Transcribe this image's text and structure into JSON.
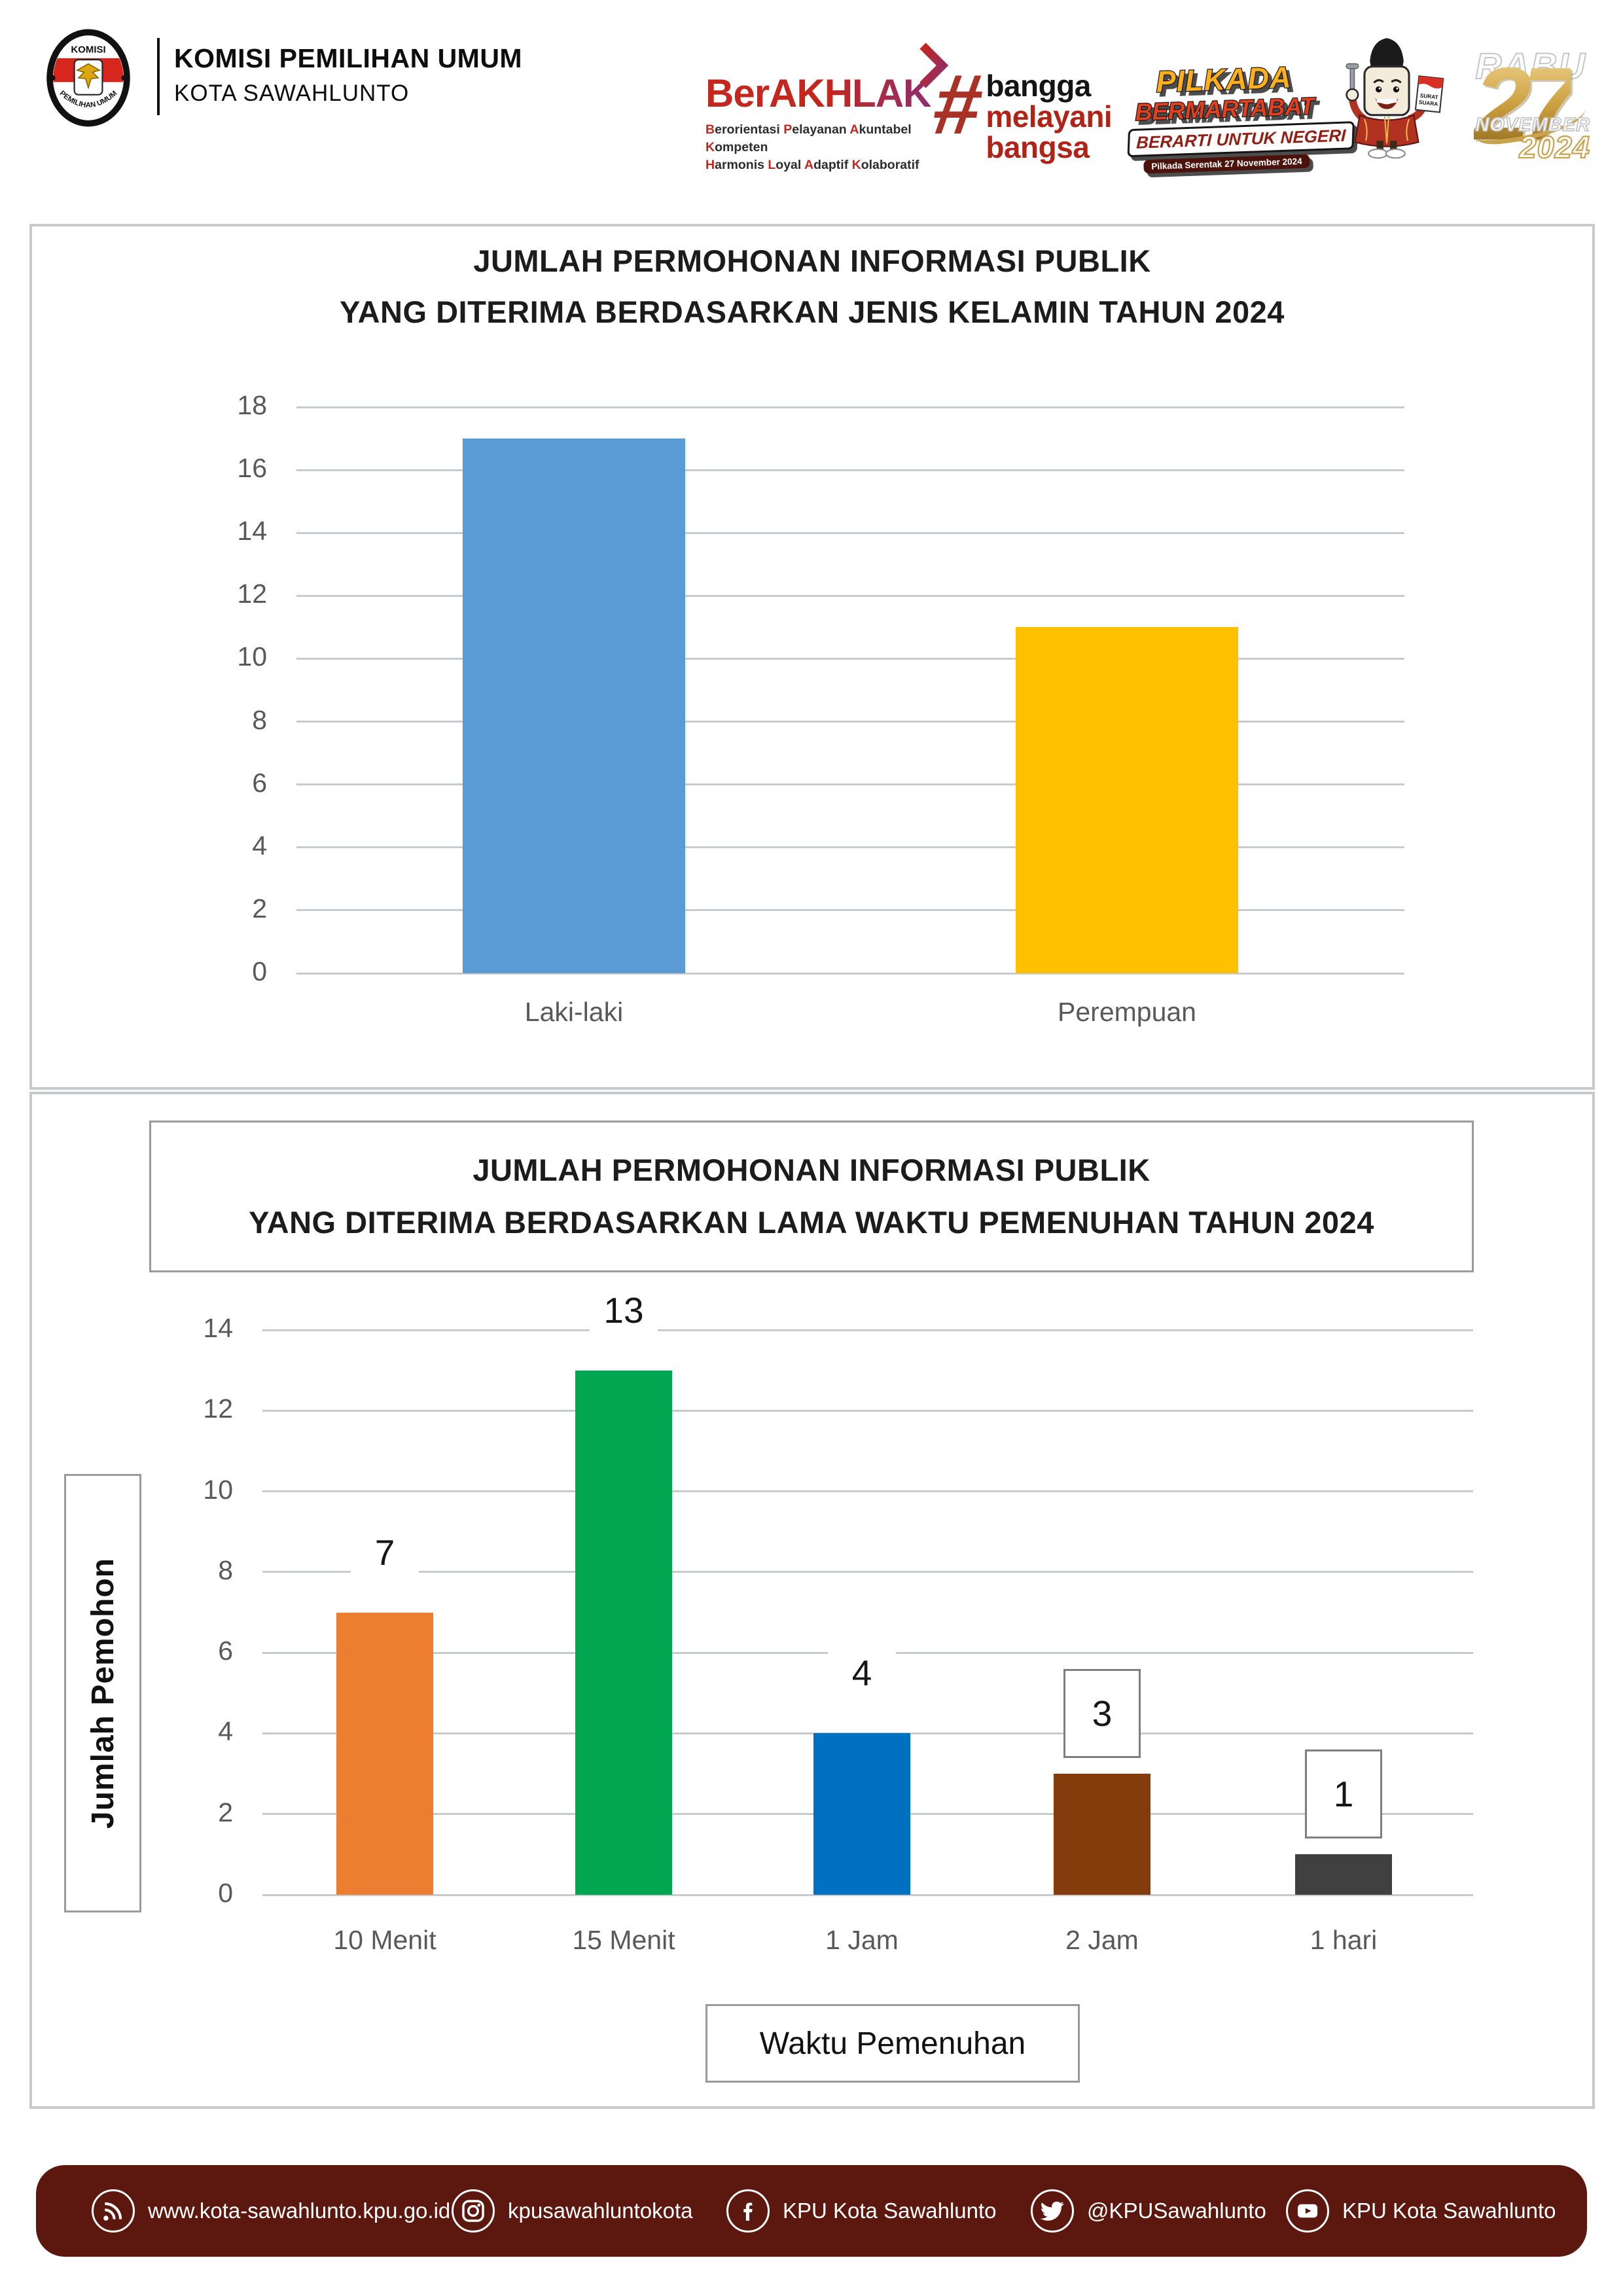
{
  "header": {
    "org_name": "KOMISI PEMILIHAN UMUM",
    "org_unit": "KOTA SAWAHLUNTO",
    "logo": {
      "top": "KOMISI",
      "bottom": "PEMILIHAN UMUM"
    },
    "berakhlak": {
      "title": "BerAKHLAK",
      "tagline1": "Berorientasi Pelayanan Akuntabel Kompeten",
      "tagline2": "Harmonis Loyal Adaptif Kolaboratif"
    },
    "hashtag": {
      "symbol": "#",
      "w1": "bangga",
      "w2": "melayani",
      "w3": "bangsa"
    },
    "badge": {
      "l1": "PILKADA",
      "l2": "BERMARTABAT",
      "l3": "BERARTI UNTUK NEGERI",
      "l4": "Pilkada Serentak 27 November 2024"
    },
    "mascot": {
      "card_line1": "SURAT",
      "card_line2": "SUARA"
    },
    "date": {
      "day": "RABU",
      "date": "27",
      "month": "NOVEMBER",
      "year": "2024"
    }
  },
  "chart_data": [
    {
      "type": "bar",
      "title_lines": [
        "JUMLAH PERMOHONAN INFORMASI PUBLIK",
        "YANG DITERIMA BERDASARKAN JENIS KELAMIN TAHUN 2024"
      ],
      "categories": [
        "Laki-laki",
        "Perempuan"
      ],
      "values": [
        17,
        11
      ],
      "bar_colors": [
        "#5B9BD5",
        "#FFC000"
      ],
      "xlabel": "",
      "ylabel": "",
      "ylim": [
        0,
        18
      ],
      "ytick_step": 2,
      "grid": true,
      "legend": "none",
      "data_labels": false
    },
    {
      "type": "bar",
      "title_lines": [
        "JUMLAH PERMOHONAN INFORMASI PUBLIK",
        "YANG DITERIMA BERDASARKAN LAMA WAKTU PEMENUHAN TAHUN 2024"
      ],
      "categories": [
        "10 Menit",
        "15 Menit",
        "1 Jam",
        "2 Jam",
        "1 hari"
      ],
      "values": [
        7,
        13,
        4,
        3,
        1
      ],
      "bar_colors": [
        "#ED7D31",
        "#00A650",
        "#0070C0",
        "#843C0C",
        "#404040"
      ],
      "xlabel": "Waktu Pemenuhan",
      "ylabel": "Jumlah Pemohon",
      "ylim": [
        0,
        14
      ],
      "ytick_step": 2,
      "grid": true,
      "legend": "none",
      "data_labels": true,
      "boxed_labels": [
        false,
        false,
        false,
        true,
        true
      ]
    }
  ],
  "footer": {
    "items": [
      {
        "icon": "rss-icon",
        "label": "www.kota-sawahlunto.kpu.go.id"
      },
      {
        "icon": "instagram-icon",
        "label": "kpusawahluntokota"
      },
      {
        "icon": "facebook-icon",
        "label": "KPU Kota Sawahlunto"
      },
      {
        "icon": "twitter-icon",
        "label": "@KPUSawahlunto"
      },
      {
        "icon": "youtube-icon",
        "label": "KPU Kota Sawahlunto"
      }
    ]
  },
  "colors": {
    "footer_bg": "#5C180E",
    "kpu_red": "#D7261E",
    "berakhlak_red": "#C3271D",
    "gold": "#C9A24B",
    "gridline": "#C9CACB",
    "tick_text": "#595959"
  }
}
